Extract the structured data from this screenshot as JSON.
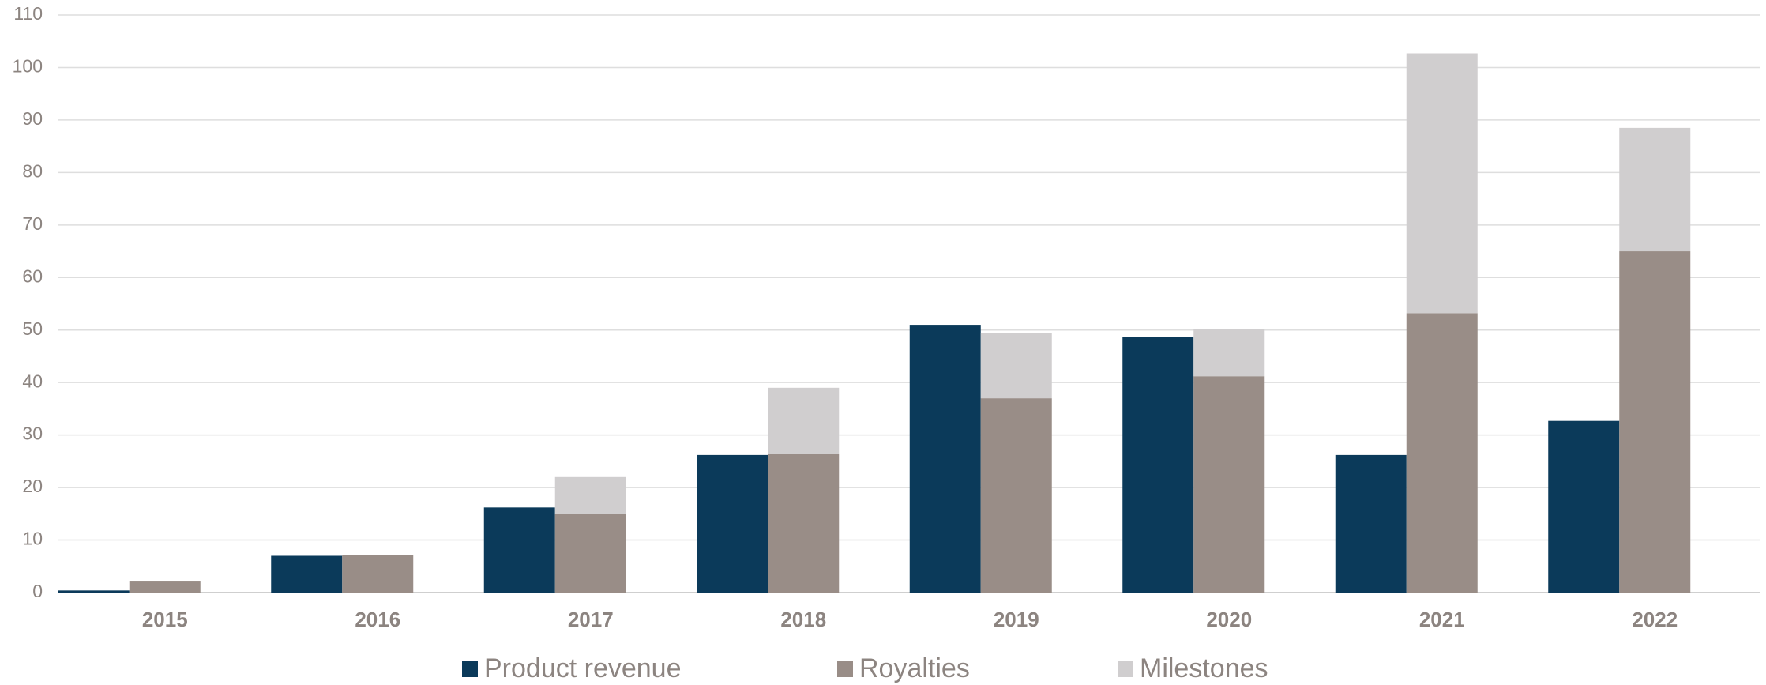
{
  "chart_data": {
    "type": "bar",
    "categories": [
      "2015",
      "2016",
      "2017",
      "2018",
      "2019",
      "2020",
      "2021",
      "2022"
    ],
    "series": [
      {
        "name": "Product revenue",
        "color": "#0b3a5a",
        "stack": "a",
        "values": [
          0.4,
          7.0,
          16.2,
          26.2,
          51.0,
          48.7,
          26.2,
          32.7
        ]
      },
      {
        "name": "Royalties",
        "color": "#998d87",
        "stack": "b",
        "values": [
          2.1,
          7.2,
          15.0,
          26.4,
          37.0,
          41.2,
          53.2,
          65.0
        ]
      },
      {
        "name": "Milestones",
        "color": "#d0cecf",
        "stack": "b",
        "values": [
          0,
          0,
          7.0,
          12.6,
          12.5,
          9.0,
          49.5,
          23.5
        ]
      }
    ],
    "ylim": [
      0,
      110
    ],
    "yticks": [
      0,
      10,
      20,
      30,
      40,
      50,
      60,
      70,
      80,
      90,
      100,
      110
    ],
    "grid": true,
    "legend": "bottom"
  }
}
